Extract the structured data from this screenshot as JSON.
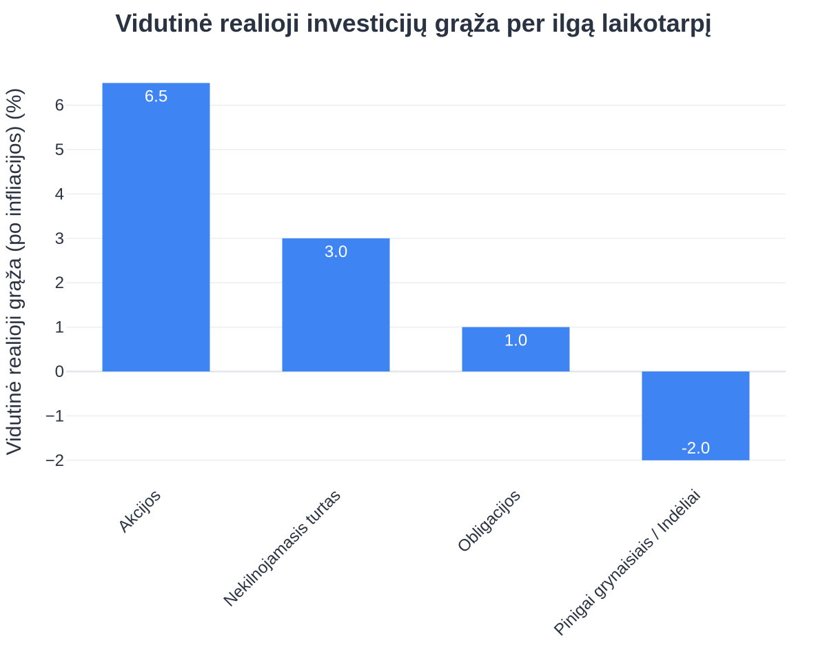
{
  "chart_data": {
    "type": "bar",
    "title": "Vidutinė realioji investicijų grąža per ilgą laikotarpį",
    "xlabel": "",
    "ylabel": "Vidutinė realioji grąža (po infliacijos) (%)",
    "categories": [
      "Akcijos",
      "Nekilnojamasis turtas",
      "Obligacijos",
      "Pinigai grynaisiais / Indėliai"
    ],
    "values": [
      6.5,
      3.0,
      1.0,
      -2.0
    ],
    "value_labels": [
      "6.5",
      "3.0",
      "1.0",
      "-2.0"
    ],
    "ylim": [
      -2.5,
      6.8
    ],
    "yticks": [
      -2,
      -1,
      0,
      1,
      2,
      3,
      4,
      5,
      6
    ],
    "ytick_labels": [
      "−2",
      "−1",
      "0",
      "1",
      "2",
      "3",
      "4",
      "5",
      "6"
    ],
    "bar_color": "#3e84f3",
    "grid": true,
    "legend": "none"
  }
}
